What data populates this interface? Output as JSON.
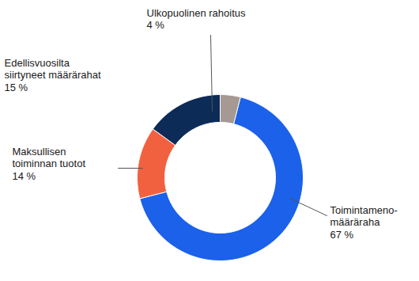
{
  "chart_data": {
    "type": "donut",
    "categories": [
      "Ulkopuolinen rahoitus",
      "Toimintameno-\nmääräraha",
      "Maksullisen\ntoiminnan tuotot",
      "Edellisvuosilta\nsiirtyneet määrärahat"
    ],
    "values": [
      4,
      67,
      14,
      15
    ],
    "value_labels": [
      "4 %",
      "67 %",
      "14 %",
      "15 %"
    ],
    "colors": [
      "#a69892",
      "#1b61ea",
      "#f2613f",
      "#0c2b57"
    ],
    "data_labels": true
  }
}
